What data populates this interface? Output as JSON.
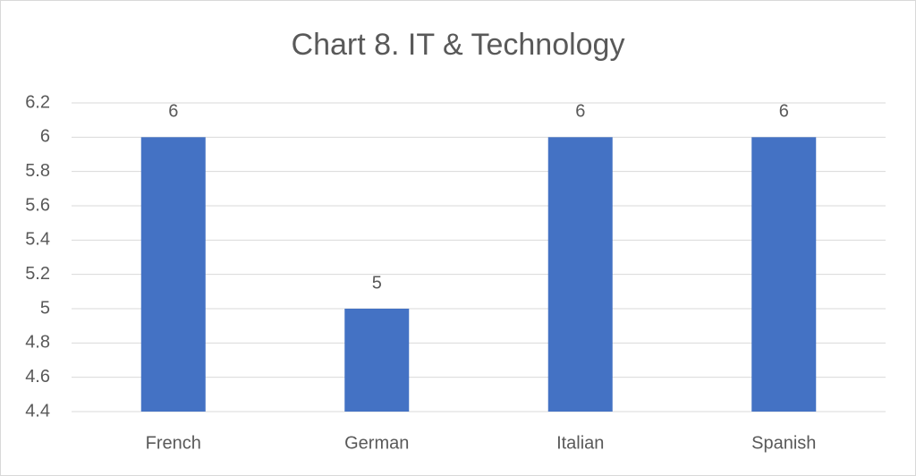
{
  "chart_data": {
    "type": "bar",
    "title": "Chart 8. IT & Technology",
    "categories": [
      "French",
      "German",
      "Italian",
      "Spanish"
    ],
    "values": [
      6,
      5,
      6,
      6
    ],
    "color": "#4472c4",
    "ylim": [
      4.4,
      6.2
    ],
    "yticks": [
      4.4,
      4.6,
      4.8,
      5,
      5.2,
      5.4,
      5.6,
      5.8,
      6,
      6.2
    ],
    "grid": true
  }
}
